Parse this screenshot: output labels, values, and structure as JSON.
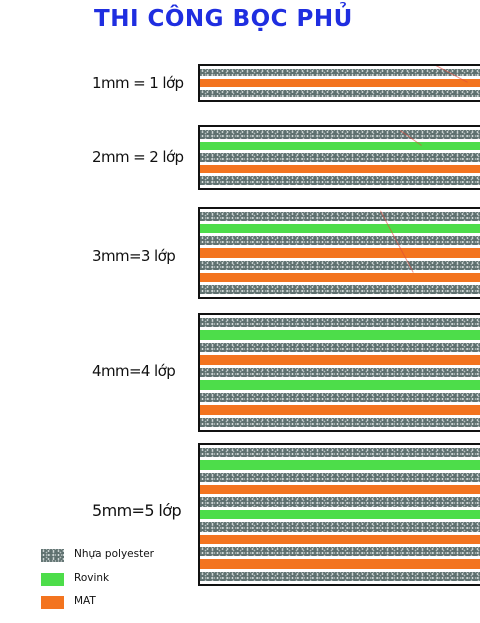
{
  "title": "THI CÔNG BỌC PHỦ",
  "rows": [
    {
      "label": "1mm = 1 lớp",
      "layers": [
        "resin",
        "mat",
        "resin"
      ]
    },
    {
      "label": "2mm = 2 lớp",
      "layers": [
        "resin",
        "roving",
        "resin",
        "mat",
        "resin"
      ]
    },
    {
      "label": "3mm=3 lớp",
      "layers": [
        "resin",
        "roving",
        "resin",
        "mat",
        "resin",
        "mat",
        "resin"
      ]
    },
    {
      "label": "4mm=4 lớp",
      "layers": [
        "resin",
        "roving",
        "resin",
        "mat",
        "resin",
        "roving",
        "resin",
        "mat",
        "resin"
      ]
    },
    {
      "label": "5mm=5 lớp",
      "layers": [
        "resin",
        "roving",
        "resin",
        "mat",
        "resin",
        "roving",
        "resin",
        "mat",
        "resin",
        "mat",
        "resin"
      ]
    }
  ],
  "legend": [
    {
      "key": "resin",
      "label": "Nhựa polyester",
      "color": "#5f7170"
    },
    {
      "key": "roving",
      "label": "Rovink",
      "color": "#4ddd4a"
    },
    {
      "key": "mat",
      "label": "MAT",
      "color": "#f3741f"
    }
  ]
}
